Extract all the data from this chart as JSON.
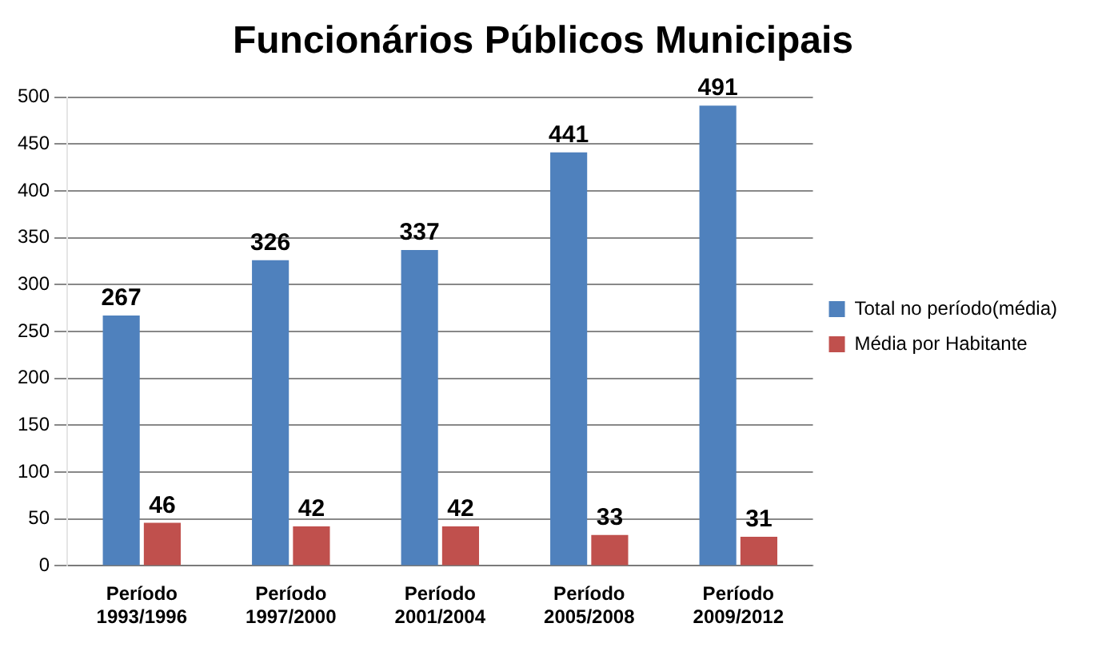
{
  "chart_data": {
    "type": "bar",
    "title": "Funcionários Públicos Municipais",
    "categories": [
      "Período 1993/1996",
      "Período 1997/2000",
      "Período 2001/2004",
      "Período 2005/2008",
      "Período 2009/2012"
    ],
    "series": [
      {
        "name": "Total no período(média)",
        "color": "#4f81bd",
        "values": [
          267,
          326,
          337,
          441,
          491
        ]
      },
      {
        "name": "Média por Habitante",
        "color": "#c0504d",
        "values": [
          46,
          42,
          42,
          33,
          31
        ]
      }
    ],
    "ylim": [
      0,
      500
    ],
    "yticks": [
      0,
      50,
      100,
      150,
      200,
      250,
      300,
      350,
      400,
      450,
      500
    ],
    "grid": "y",
    "legend": "right",
    "data_labels": true
  }
}
